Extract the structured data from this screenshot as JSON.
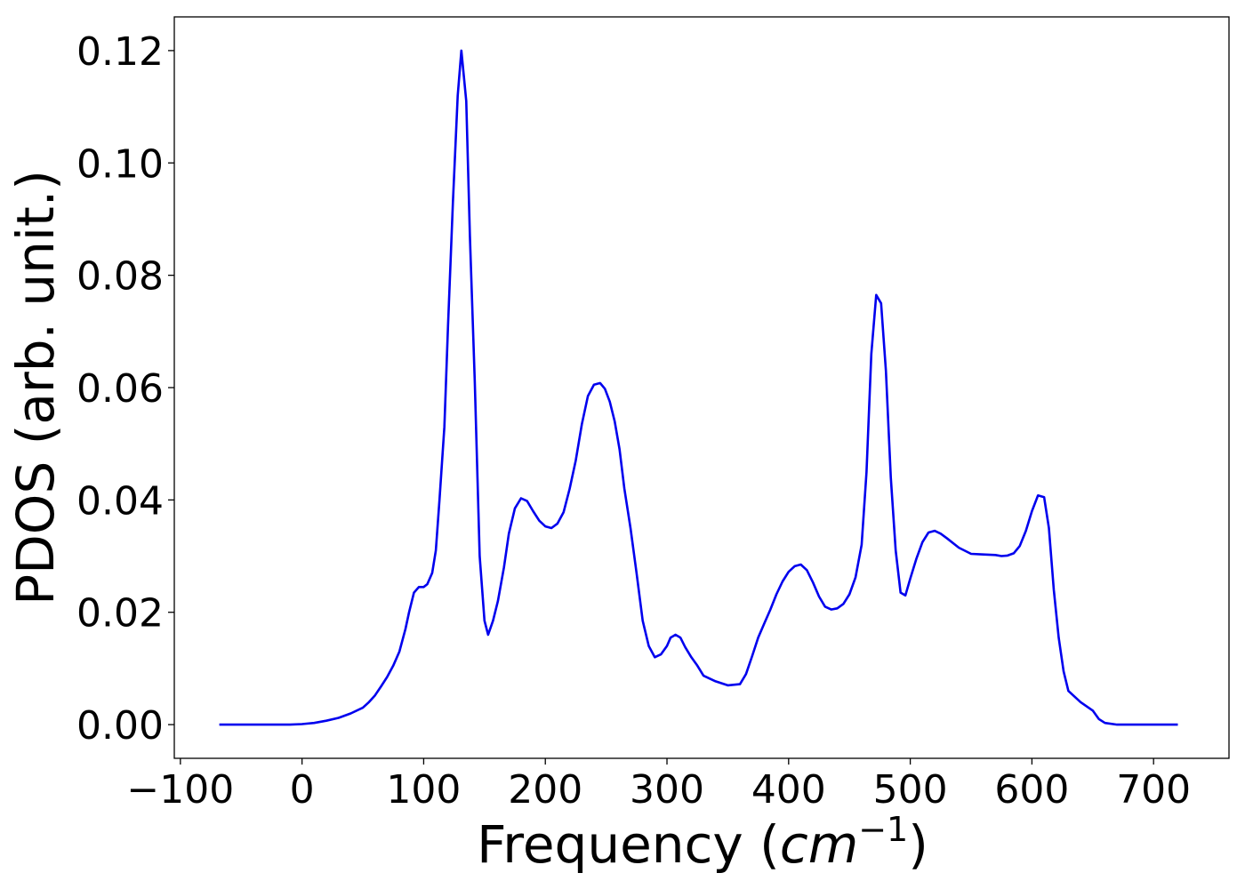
{
  "chart_data": {
    "type": "line",
    "title": "",
    "xlabel_text": "Frequency (",
    "xlabel_math_base": "cm",
    "xlabel_math_exp": "−1",
    "xlabel_close": ")",
    "ylabel": "PDOS (arb. unit.)",
    "xlim": [
      -105,
      762
    ],
    "ylim": [
      -0.006,
      0.126
    ],
    "xticks": [
      -100,
      0,
      100,
      200,
      300,
      400,
      500,
      600,
      700
    ],
    "xtick_labels": [
      "−100",
      "0",
      "100",
      "200",
      "300",
      "400",
      "500",
      "600",
      "700"
    ],
    "yticks": [
      0.0,
      0.02,
      0.04,
      0.06,
      0.08,
      0.1,
      0.12
    ],
    "ytick_labels": [
      "0.00",
      "0.02",
      "0.04",
      "0.06",
      "0.08",
      "0.10",
      "0.12"
    ],
    "grid": false,
    "legend": false,
    "series": [
      {
        "color": "#0000ee",
        "x": [
          -68,
          -40,
          -10,
          0,
          10,
          20,
          30,
          40,
          50,
          55,
          60,
          65,
          70,
          75,
          80,
          85,
          88,
          92,
          96,
          100,
          103,
          107,
          110,
          113,
          117,
          120,
          124,
          128,
          131,
          135,
          138,
          142,
          146,
          150,
          153,
          157,
          161,
          166,
          170,
          175,
          180,
          185,
          190,
          195,
          200,
          205,
          210,
          215,
          220,
          225,
          230,
          235,
          240,
          245,
          249,
          253,
          257,
          261,
          265,
          270,
          275,
          280,
          285,
          290,
          295,
          300,
          303,
          307,
          311,
          315,
          320,
          325,
          330,
          340,
          350,
          360,
          365,
          370,
          375,
          380,
          385,
          390,
          395,
          400,
          405,
          410,
          415,
          420,
          425,
          430,
          435,
          440,
          445,
          450,
          455,
          460,
          464,
          468,
          472,
          476,
          480,
          484,
          488,
          492,
          496,
          500,
          505,
          510,
          515,
          520,
          525,
          530,
          540,
          550,
          560,
          570,
          575,
          580,
          585,
          590,
          595,
          600,
          605,
          610,
          614,
          618,
          622,
          626,
          630,
          640,
          650,
          655,
          660,
          670,
          680,
          700,
          720
        ],
        "y": [
          0.0,
          0.0,
          0.0,
          0.0001,
          0.0003,
          0.0007,
          0.0012,
          0.002,
          0.003,
          0.004,
          0.0052,
          0.0068,
          0.0085,
          0.0105,
          0.013,
          0.017,
          0.02,
          0.0235,
          0.0245,
          0.0245,
          0.025,
          0.027,
          0.031,
          0.04,
          0.053,
          0.071,
          0.093,
          0.112,
          0.12,
          0.111,
          0.087,
          0.061,
          0.03,
          0.0185,
          0.016,
          0.0185,
          0.022,
          0.028,
          0.034,
          0.0385,
          0.0403,
          0.0398,
          0.038,
          0.0363,
          0.0353,
          0.035,
          0.0358,
          0.0378,
          0.042,
          0.047,
          0.0535,
          0.0585,
          0.0605,
          0.0608,
          0.0598,
          0.0575,
          0.054,
          0.049,
          0.042,
          0.035,
          0.027,
          0.0185,
          0.014,
          0.012,
          0.0125,
          0.014,
          0.0155,
          0.016,
          0.0155,
          0.0138,
          0.012,
          0.0105,
          0.0087,
          0.0077,
          0.007,
          0.0072,
          0.009,
          0.0122,
          0.0155,
          0.018,
          0.0205,
          0.0232,
          0.0255,
          0.0272,
          0.0282,
          0.0285,
          0.0275,
          0.0253,
          0.0228,
          0.021,
          0.0205,
          0.0207,
          0.0215,
          0.0232,
          0.0262,
          0.032,
          0.045,
          0.066,
          0.0765,
          0.075,
          0.063,
          0.044,
          0.031,
          0.0235,
          0.023,
          0.026,
          0.0295,
          0.0325,
          0.0342,
          0.0345,
          0.034,
          0.0332,
          0.0315,
          0.0304,
          0.0303,
          0.0302,
          0.03,
          0.0301,
          0.0305,
          0.0318,
          0.0345,
          0.038,
          0.0408,
          0.0405,
          0.035,
          0.024,
          0.0155,
          0.0095,
          0.006,
          0.004,
          0.0025,
          0.001,
          0.0003,
          0.0,
          0.0,
          0.0,
          0.0
        ]
      }
    ]
  }
}
